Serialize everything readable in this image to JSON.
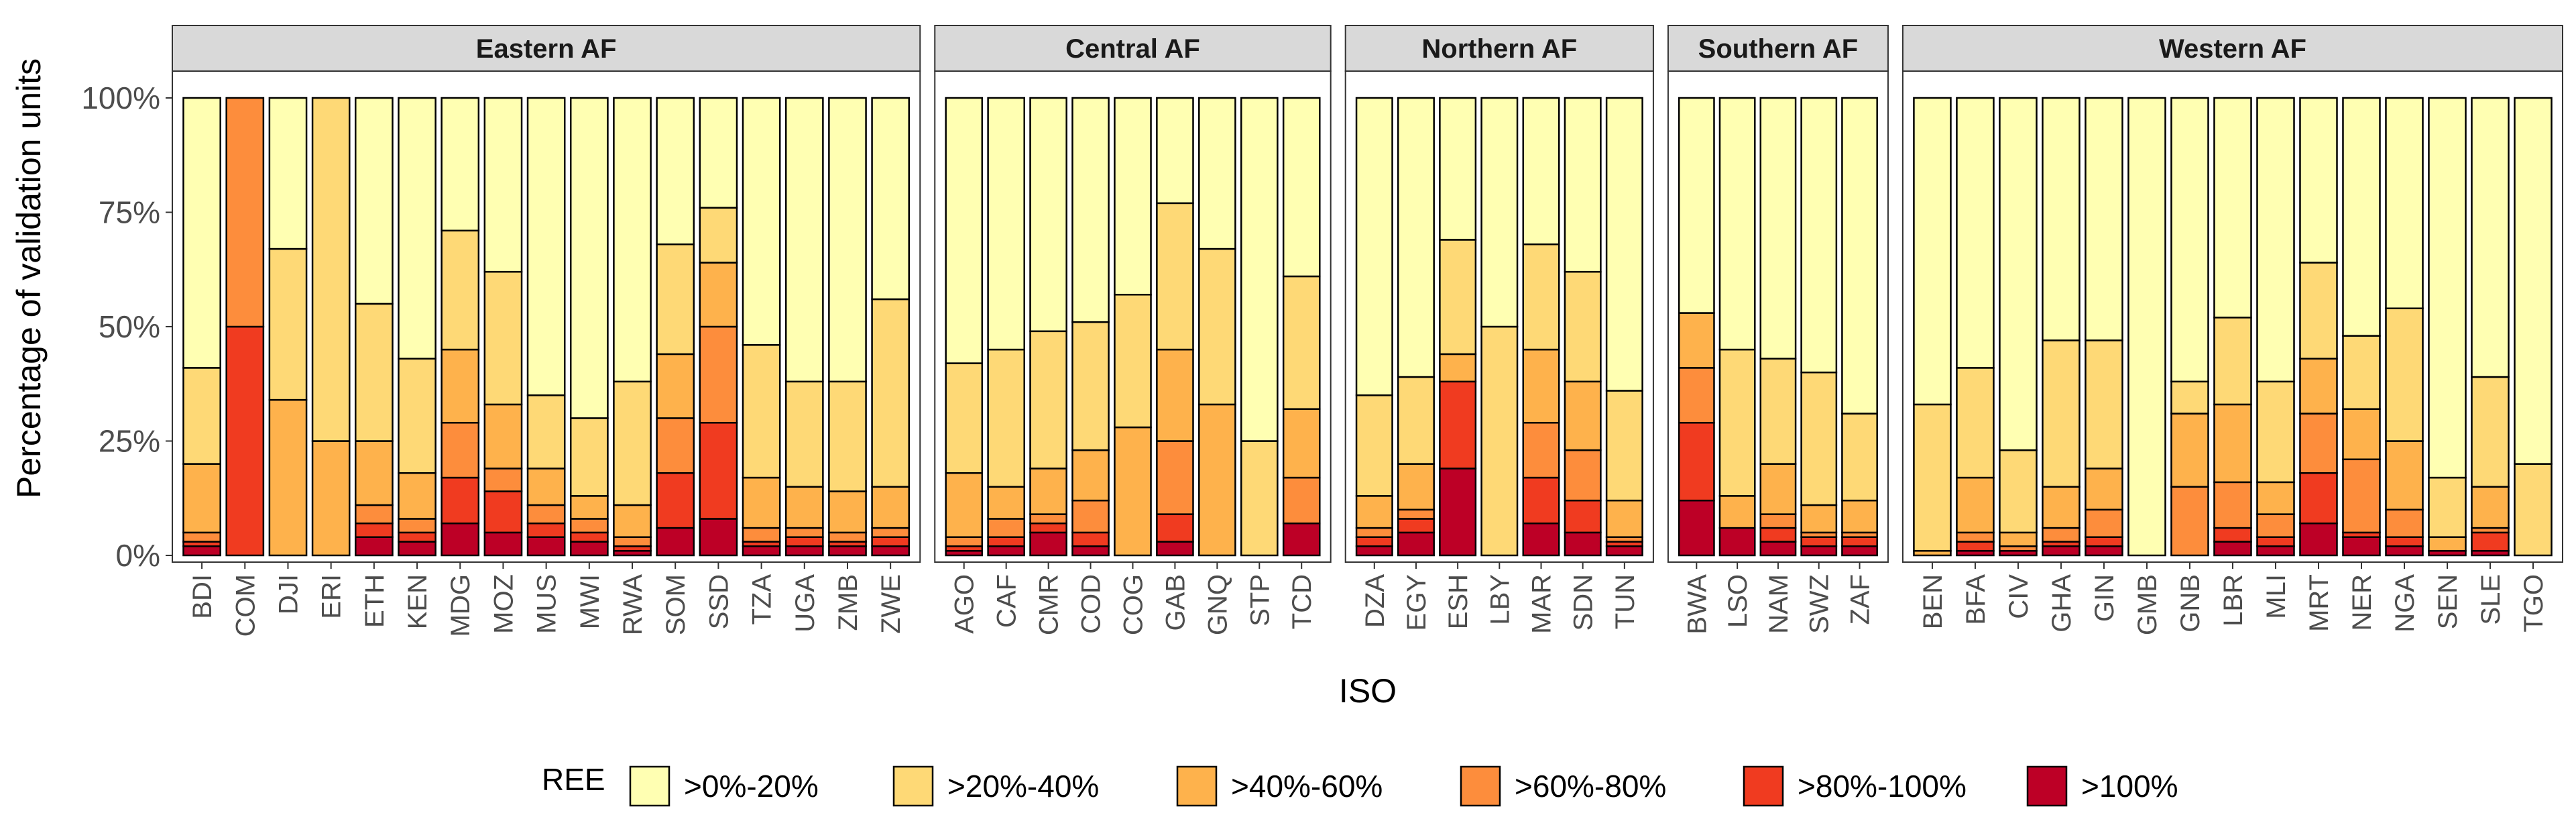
{
  "chart_data": {
    "type": "bar",
    "stacked": true,
    "normalized": true,
    "ylabel": "Percentage of validation units",
    "xlabel": "ISO",
    "ylim": [
      0,
      100
    ],
    "yticks": [
      0,
      25,
      50,
      75,
      100
    ],
    "ytick_labels": [
      "0%",
      "25%",
      "50%",
      "75%",
      "100%"
    ],
    "legend": {
      "title": "REE",
      "position": "bottom",
      "entries": [
        ">0%-20%",
        ">20%-40%",
        ">40%-60%",
        ">60%-80%",
        ">80%-100%",
        ">100%"
      ]
    },
    "colors": [
      "#FFFFB2",
      "#FED976",
      "#FEB24C",
      "#FD8D3C",
      "#F03B20",
      "#BD0026"
    ],
    "panels": [
      {
        "title": "Eastern AF",
        "categories": [
          "BDI",
          "COM",
          "DJI",
          "ERI",
          "ETH",
          "KEN",
          "MDG",
          "MOZ",
          "MUS",
          "MWI",
          "RWA",
          "SOM",
          "SSD",
          "TZA",
          "UGA",
          "ZMB",
          "ZWE"
        ],
        "series": [
          {
            "name": ">0%-20%",
            "values": [
              59,
              0,
              33,
              0,
              45,
              57,
              29,
              38,
              65,
              70,
              62,
              32,
              24,
              54,
              62,
              62,
              44
            ]
          },
          {
            "name": ">20%-40%",
            "values": [
              21,
              0,
              33,
              75,
              30,
              25,
              26,
              29,
              16,
              17,
              27,
              24,
              12,
              29,
              23,
              24,
              41
            ]
          },
          {
            "name": ">40%-60%",
            "values": [
              15,
              0,
              34,
              25,
              14,
              10,
              16,
              14,
              8,
              5,
              7,
              14,
              14,
              11,
              9,
              9,
              9
            ]
          },
          {
            "name": ">60%-80%",
            "values": [
              2,
              50,
              0,
              0,
              4,
              3,
              12,
              5,
              4,
              3,
              2,
              12,
              21,
              3,
              2,
              2,
              2
            ]
          },
          {
            "name": ">80%-100%",
            "values": [
              1,
              50,
              0,
              0,
              3,
              2,
              10,
              9,
              3,
              2,
              1,
              12,
              21,
              1,
              2,
              1,
              2
            ]
          },
          {
            "name": ">100%",
            "values": [
              2,
              0,
              0,
              0,
              4,
              3,
              7,
              5,
              4,
              3,
              1,
              6,
              8,
              2,
              2,
              2,
              2
            ]
          }
        ]
      },
      {
        "title": "Central AF",
        "categories": [
          "AGO",
          "CAF",
          "CMR",
          "COD",
          "COG",
          "GAB",
          "GNQ",
          "STP",
          "TCD"
        ],
        "series": [
          {
            "name": ">0%-20%",
            "values": [
              58,
              55,
              51,
              49,
              43,
              23,
              33,
              75,
              39
            ]
          },
          {
            "name": ">20%-40%",
            "values": [
              24,
              30,
              30,
              28,
              29,
              32,
              34,
              25,
              29
            ]
          },
          {
            "name": ">40%-60%",
            "values": [
              14,
              7,
              10,
              11,
              28,
              20,
              33,
              0,
              15
            ]
          },
          {
            "name": ">60%-80%",
            "values": [
              2,
              4,
              2,
              7,
              0,
              16,
              0,
              0,
              10
            ]
          },
          {
            "name": ">80%-100%",
            "values": [
              1,
              2,
              2,
              3,
              0,
              6,
              0,
              0,
              0
            ]
          },
          {
            "name": ">100%",
            "values": [
              1,
              2,
              5,
              2,
              0,
              3,
              0,
              0,
              7
            ]
          }
        ]
      },
      {
        "title": "Northern AF",
        "categories": [
          "DZA",
          "EGY",
          "ESH",
          "LBY",
          "MAR",
          "SDN",
          "TUN"
        ],
        "series": [
          {
            "name": ">0%-20%",
            "values": [
              65,
              61,
              31,
              50,
              32,
              38,
              64
            ]
          },
          {
            "name": ">20%-40%",
            "values": [
              22,
              19,
              25,
              50,
              23,
              24,
              24
            ]
          },
          {
            "name": ">40%-60%",
            "values": [
              7,
              10,
              6,
              0,
              16,
              15,
              8
            ]
          },
          {
            "name": ">60%-80%",
            "values": [
              2,
              2,
              0,
              0,
              12,
              11,
              1
            ]
          },
          {
            "name": ">80%-100%",
            "values": [
              2,
              3,
              19,
              0,
              10,
              7,
              1
            ]
          },
          {
            "name": ">100%",
            "values": [
              2,
              5,
              19,
              0,
              7,
              5,
              2
            ]
          }
        ]
      },
      {
        "title": "Southern AF",
        "categories": [
          "BWA",
          "LSO",
          "NAM",
          "SWZ",
          "ZAF"
        ],
        "series": [
          {
            "name": ">0%-20%",
            "values": [
              47,
              55,
              57,
              60,
              69
            ]
          },
          {
            "name": ">20%-40%",
            "values": [
              0,
              32,
              23,
              29,
              19
            ]
          },
          {
            "name": ">40%-60%",
            "values": [
              12,
              7,
              11,
              6,
              7
            ]
          },
          {
            "name": ">60%-80%",
            "values": [
              12,
              0,
              3,
              1,
              1
            ]
          },
          {
            "name": ">80%-100%",
            "values": [
              17,
              0,
              3,
              2,
              2
            ]
          },
          {
            "name": ">100%",
            "values": [
              12,
              6,
              3,
              2,
              2
            ]
          }
        ]
      },
      {
        "title": "Western AF",
        "categories": [
          "BEN",
          "BFA",
          "CIV",
          "GHA",
          "GIN",
          "GMB",
          "GNB",
          "LBR",
          "MLI",
          "MRT",
          "NER",
          "NGA",
          "SEN",
          "SLE",
          "TGO"
        ],
        "series": [
          {
            "name": ">0%-20%",
            "values": [
              67,
              59,
              77,
              53,
              53,
              100,
              62,
              48,
              62,
              36,
              52,
              46,
              83,
              61,
              80
            ]
          },
          {
            "name": ">20%-40%",
            "values": [
              32,
              24,
              18,
              32,
              28,
              0,
              7,
              19,
              22,
              21,
              16,
              29,
              13,
              24,
              20
            ]
          },
          {
            "name": ">40%-60%",
            "values": [
              1,
              12,
              3,
              9,
              9,
              0,
              16,
              17,
              7,
              12,
              11,
              15,
              3,
              9,
              0
            ]
          },
          {
            "name": ">60%-80%",
            "values": [
              0,
              2,
              1,
              3,
              6,
              0,
              15,
              10,
              5,
              13,
              16,
              6,
              0,
              1,
              0
            ]
          },
          {
            "name": ">80%-100%",
            "values": [
              0,
              2,
              0,
              1,
              2,
              0,
              0,
              3,
              2,
              11,
              1,
              2,
              0,
              4,
              0
            ]
          },
          {
            "name": ">100%",
            "values": [
              0,
              1,
              1,
              2,
              2,
              0,
              0,
              3,
              2,
              7,
              4,
              2,
              1,
              1,
              0
            ]
          }
        ]
      }
    ]
  }
}
